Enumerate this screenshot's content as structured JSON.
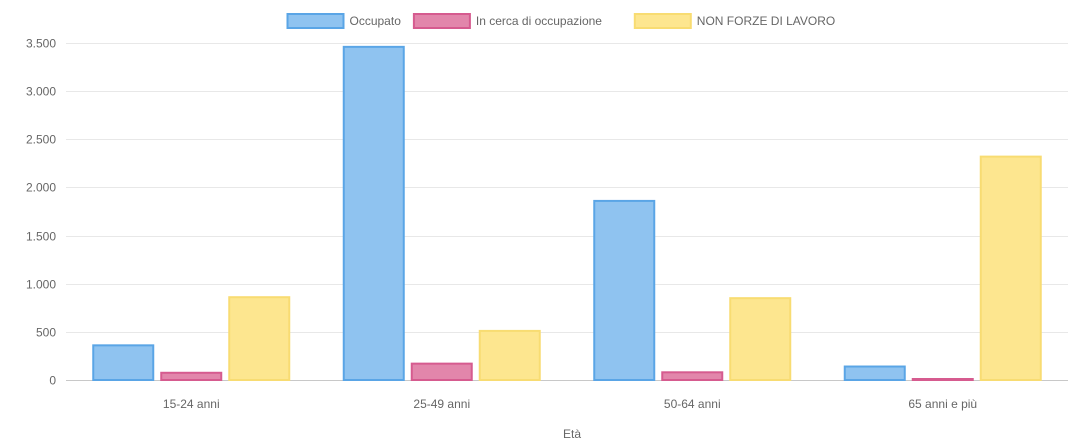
{
  "chart_data": {
    "type": "bar",
    "xlabel": "Età",
    "ylabel": "",
    "ylim": [
      0,
      3500
    ],
    "yticks": [
      0,
      500,
      1000,
      1500,
      2000,
      2500,
      3000,
      3500
    ],
    "ytick_labels": [
      "0",
      "500",
      "1.000",
      "1.500",
      "2.000",
      "2.500",
      "3.000",
      "3.500"
    ],
    "grid": true,
    "legend_position": "top",
    "categories": [
      "15-24 anni",
      "25-49 anni",
      "50-64 anni",
      "65 anni e più"
    ],
    "series": [
      {
        "name": "Occupato",
        "values": [
          360,
          3460,
          1860,
          140
        ],
        "fill": "#8fc3f0",
        "stroke": "#5aa5e6"
      },
      {
        "name": "In cerca di occupazione",
        "values": [
          75,
          170,
          80,
          10
        ],
        "fill": "#e286ab",
        "stroke": "#d65b8f"
      },
      {
        "name": "NON FORZE DI LAVORO",
        "values": [
          860,
          510,
          850,
          2320
        ],
        "fill": "#fde68f",
        "stroke": "#f8dc72"
      }
    ]
  }
}
